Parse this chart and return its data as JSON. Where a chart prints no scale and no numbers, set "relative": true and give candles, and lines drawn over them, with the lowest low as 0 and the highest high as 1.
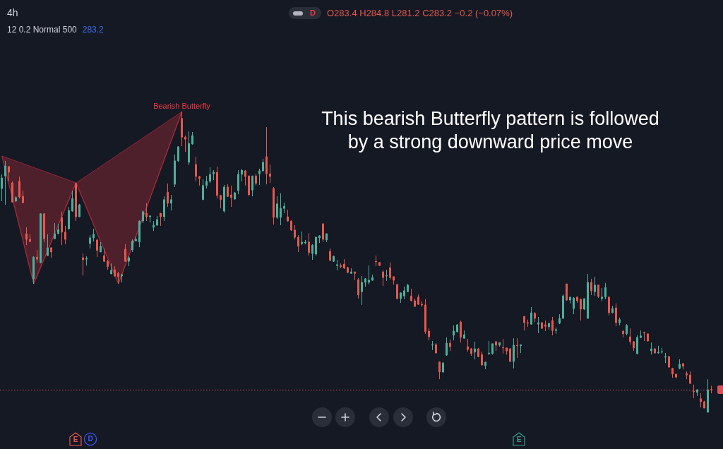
{
  "chart_data": {
    "type": "candlestick",
    "title": "4h",
    "subtitle": "12 0.2 Normal 500",
    "relative": true,
    "tick_labels": false,
    "categories": [
      null,
      null,
      null,
      null,
      null,
      null,
      null,
      null,
      null,
      null,
      null,
      null,
      null,
      null,
      null,
      null,
      null,
      null,
      null,
      null,
      null,
      null,
      null,
      null,
      null,
      null,
      null,
      null,
      null,
      null,
      null,
      null,
      null,
      null,
      null,
      null,
      null,
      null,
      null,
      null,
      null,
      null,
      null,
      null,
      null,
      null,
      null,
      null,
      null,
      null,
      null,
      null,
      null,
      null,
      null,
      null,
      null,
      null,
      null,
      null,
      null,
      null,
      null,
      null,
      null,
      null,
      null,
      null,
      null,
      null,
      null,
      null,
      null,
      null,
      null,
      null,
      null,
      null,
      null,
      null,
      null,
      null,
      null,
      null,
      null,
      null,
      null,
      null,
      null,
      null,
      null,
      null,
      null,
      null,
      null,
      null,
      null,
      null,
      null,
      null,
      null,
      null,
      null,
      null,
      null,
      null,
      null,
      null,
      null,
      null,
      null,
      null,
      null,
      null,
      null,
      null,
      null,
      null,
      null,
      null,
      null,
      null,
      null,
      null,
      null,
      null,
      null,
      null,
      null,
      null,
      null,
      null,
      null,
      null,
      null,
      null,
      null,
      null,
      null,
      null,
      null,
      null,
      null,
      null,
      null,
      null,
      null,
      null,
      null,
      null,
      null,
      null,
      null,
      null,
      null,
      null,
      null,
      null,
      null,
      null,
      null,
      null,
      null,
      null,
      null,
      null,
      null,
      null,
      null,
      null,
      null,
      null,
      null,
      null,
      null,
      null,
      null,
      null,
      null,
      null,
      null,
      null,
      null,
      null,
      null,
      null,
      null,
      null,
      null,
      null,
      null,
      null,
      null,
      null,
      null,
      null,
      null,
      null,
      null,
      null,
      null,
      null
    ],
    "ohlc": [
      [
        0.744,
        0.791,
        0.702,
        0.779
      ],
      [
        0.786,
        0.836,
        0.69,
        0.819
      ],
      [
        0.817,
        0.819,
        0.77,
        0.798
      ],
      [
        0.763,
        0.768,
        0.697,
        0.699
      ],
      [
        0.702,
        0.718,
        0.699,
        0.714
      ],
      [
        0.768,
        0.784,
        0.711,
        0.716
      ],
      [
        0.718,
        0.737,
        0.695,
        0.697
      ],
      [
        0.594,
        0.615,
        0.556,
        0.575
      ],
      [
        0.575,
        0.592,
        0.566,
        0.568
      ],
      [
        0.444,
        0.519,
        0.427,
        0.516
      ],
      [
        0.516,
        0.54,
        0.498,
        0.509
      ],
      [
        0.498,
        0.662,
        0.495,
        0.66
      ],
      [
        0.66,
        0.662,
        0.566,
        0.577
      ],
      [
        0.521,
        0.592,
        0.521,
        0.547
      ],
      [
        0.547,
        0.549,
        0.514,
        0.533
      ],
      [
        0.577,
        0.629,
        0.577,
        0.594
      ],
      [
        0.594,
        0.627,
        0.592,
        0.608
      ],
      [
        0.648,
        0.667,
        0.556,
        0.599
      ],
      [
        0.599,
        0.62,
        0.559,
        0.575
      ],
      [
        0.61,
        0.683,
        0.608,
        0.671
      ],
      [
        0.669,
        0.737,
        0.667,
        0.711
      ],
      [
        0.761,
        0.763,
        0.636,
        0.65
      ],
      [
        0.65,
        0.693,
        0.65,
        0.69
      ],
      [
        0.514,
        0.528,
        0.455,
        0.507
      ],
      [
        0.509,
        0.519,
        0.488,
        0.512
      ],
      [
        0.561,
        0.589,
        0.545,
        0.58
      ],
      [
        0.58,
        0.61,
        0.568,
        0.592
      ],
      [
        0.573,
        0.577,
        0.516,
        0.538
      ],
      [
        0.533,
        0.566,
        0.533,
        0.552
      ],
      [
        0.521,
        0.545,
        0.5,
        0.502
      ],
      [
        0.502,
        0.507,
        0.474,
        0.484
      ],
      [
        0.46,
        0.495,
        0.46,
        0.472
      ],
      [
        0.474,
        0.486,
        0.451,
        0.453
      ],
      [
        0.462,
        0.467,
        0.427,
        0.451
      ],
      [
        0.453,
        0.46,
        0.432,
        0.458
      ],
      [
        0.542,
        0.559,
        0.5,
        0.502
      ],
      [
        0.502,
        0.519,
        0.486,
        0.514
      ],
      [
        0.54,
        0.575,
        0.533,
        0.57
      ],
      [
        0.57,
        0.585,
        0.568,
        0.575
      ],
      [
        0.566,
        0.638,
        0.549,
        0.636
      ],
      [
        0.636,
        0.671,
        0.629,
        0.667
      ],
      [
        0.662,
        0.695,
        0.636,
        0.65
      ],
      [
        0.65,
        0.655,
        0.631,
        0.653
      ],
      [
        0.615,
        0.636,
        0.603,
        0.622
      ],
      [
        0.622,
        0.653,
        0.62,
        0.641
      ],
      [
        0.662,
        0.662,
        0.62,
        0.65
      ],
      [
        0.65,
        0.718,
        0.636,
        0.707
      ],
      [
        0.732,
        0.761,
        0.683,
        0.695
      ],
      [
        0.695,
        0.723,
        0.671,
        0.707
      ],
      [
        0.758,
        0.857,
        0.749,
        0.836
      ],
      [
        0.836,
        0.885,
        0.833,
        0.883
      ],
      [
        0.977,
        1,
        0.885,
        0.915
      ],
      [
        0.915,
        0.92,
        0.866,
        0.908
      ],
      [
        0.831,
        0.934,
        0.822,
        0.894
      ],
      [
        0.892,
        0.932,
        0.89,
        0.92
      ],
      [
        0.824,
        0.85,
        0.768,
        0.784
      ],
      [
        0.784,
        0.786,
        0.754,
        0.777
      ],
      [
        0.707,
        0.775,
        0.707,
        0.754
      ],
      [
        0.754,
        0.786,
        0.744,
        0.768
      ],
      [
        0.768,
        0.815,
        0.763,
        0.791
      ],
      [
        0.793,
        0.805,
        0.772,
        0.798
      ],
      [
        0.798,
        0.817,
        0.711,
        0.721
      ],
      [
        0.721,
        0.723,
        0.678,
        0.707
      ],
      [
        0.669,
        0.756,
        0.664,
        0.749
      ],
      [
        0.749,
        0.758,
        0.716,
        0.718
      ],
      [
        0.723,
        0.754,
        0.683,
        0.714
      ],
      [
        0.709,
        0.732,
        0.707,
        0.73
      ],
      [
        0.737,
        0.805,
        0.725,
        0.791
      ],
      [
        0.791,
        0.808,
        0.768,
        0.805
      ],
      [
        0.803,
        0.805,
        0.754,
        0.784
      ],
      [
        0.786,
        0.786,
        0.721,
        0.723
      ],
      [
        0.739,
        0.786,
        0.718,
        0.786
      ],
      [
        0.786,
        0.793,
        0.754,
        0.761
      ],
      [
        0.793,
        0.81,
        0.756,
        0.803
      ],
      [
        0.803,
        0.843,
        0.8,
        0.831
      ],
      [
        0.85,
        0.948,
        0.758,
        0.793
      ],
      [
        0.793,
        0.824,
        0.763,
        0.784
      ],
      [
        0.744,
        0.749,
        0.624,
        0.648
      ],
      [
        0.648,
        0.718,
        0.643,
        0.693
      ],
      [
        0.648,
        0.728,
        0.622,
        0.678
      ],
      [
        0.678,
        0.697,
        0.662,
        0.685
      ],
      [
        0.65,
        0.674,
        0.634,
        0.636
      ],
      [
        0.636,
        0.638,
        0.603,
        0.606
      ],
      [
        0.606,
        0.622,
        0.575,
        0.582
      ],
      [
        0.582,
        0.589,
        0.533,
        0.552
      ],
      [
        0.561,
        0.601,
        0.556,
        0.566
      ],
      [
        0.563,
        0.573,
        0.559,
        0.566
      ],
      [
        0.566,
        0.596,
        0.521,
        0.531
      ],
      [
        0.528,
        0.559,
        0.507,
        0.556
      ],
      [
        0.526,
        0.585,
        0.521,
        0.582
      ],
      [
        0.58,
        0.589,
        0.563,
        0.587
      ],
      [
        0.627,
        0.627,
        0.566,
        0.575
      ],
      [
        0.573,
        0.594,
        0.566,
        0.594
      ],
      [
        0.535,
        0.545,
        0.502,
        0.505
      ],
      [
        0.502,
        0.521,
        0.5,
        0.519
      ],
      [
        0.488,
        0.507,
        0.472,
        0.491
      ],
      [
        0.488,
        0.495,
        0.479,
        0.484
      ],
      [
        0.493,
        0.509,
        0.477,
        0.479
      ],
      [
        0.481,
        0.484,
        0.462,
        0.465
      ],
      [
        0.462,
        0.479,
        0.46,
        0.467
      ],
      [
        0.467,
        0.467,
        0.439,
        0.462
      ],
      [
        0.441,
        0.446,
        0.378,
        0.39
      ],
      [
        0.401,
        0.453,
        0.357,
        0.432
      ],
      [
        0.432,
        0.446,
        0.418,
        0.444
      ],
      [
        0.432,
        0.488,
        0.425,
        0.439
      ],
      [
        0.439,
        0.458,
        0.437,
        0.448
      ],
      [
        0.502,
        0.521,
        0.486,
        0.5
      ],
      [
        0.498,
        0.5,
        0.486,
        0.488
      ],
      [
        0.467,
        0.472,
        0.42,
        0.448
      ],
      [
        0.453,
        0.474,
        0.437,
        0.455
      ],
      [
        0.481,
        0.498,
        0.441,
        0.448
      ],
      [
        0.451,
        0.451,
        0.425,
        0.439
      ],
      [
        0.425,
        0.425,
        0.376,
        0.378
      ],
      [
        0.378,
        0.399,
        0.364,
        0.397
      ],
      [
        0.387,
        0.418,
        0.376,
        0.404
      ],
      [
        0.401,
        0.427,
        0.401,
        0.423
      ],
      [
        0.387,
        0.411,
        0.369,
        0.371
      ],
      [
        0.371,
        0.378,
        0.35,
        0.352
      ],
      [
        0.383,
        0.392,
        0.357,
        0.359
      ],
      [
        0.359,
        0.369,
        0.35,
        0.357
      ],
      [
        0.357,
        0.376,
        0.261,
        0.268
      ],
      [
        0.27,
        0.279,
        0.239,
        0.251
      ],
      [
        0.223,
        0.237,
        0.207,
        0.225
      ],
      [
        0.225,
        0.23,
        0.197,
        0.197
      ],
      [
        0.167,
        0.169,
        0.11,
        0.134
      ],
      [
        0.134,
        0.167,
        0.131,
        0.164
      ],
      [
        0.19,
        0.249,
        0.188,
        0.23
      ],
      [
        0.23,
        0.242,
        0.204,
        0.218
      ],
      [
        0.256,
        0.289,
        0.239,
        0.27
      ],
      [
        0.268,
        0.293,
        0.265,
        0.291
      ],
      [
        0.3,
        0.305,
        0.232,
        0.249
      ],
      [
        0.246,
        0.272,
        0.246,
        0.258
      ],
      [
        0.218,
        0.244,
        0.202,
        0.209
      ],
      [
        0.211,
        0.214,
        0.188,
        0.195
      ],
      [
        0.2,
        0.235,
        0.176,
        0.211
      ],
      [
        0.211,
        0.214,
        0.183,
        0.185
      ],
      [
        0.192,
        0.202,
        0.155,
        0.157
      ],
      [
        0.155,
        0.167,
        0.143,
        0.167
      ],
      [
        0.195,
        0.237,
        0.19,
        0.197
      ],
      [
        0.195,
        0.228,
        0.192,
        0.228
      ],
      [
        0.235,
        0.237,
        0.204,
        0.223
      ],
      [
        0.223,
        0.232,
        0.218,
        0.232
      ],
      [
        0.216,
        0.244,
        0.195,
        0.214
      ],
      [
        0.214,
        0.214,
        0.192,
        0.204
      ],
      [
        0.211,
        0.214,
        0.167,
        0.169
      ],
      [
        0.169,
        0.246,
        0.146,
        0.223
      ],
      [
        0.223,
        0.246,
        0.181,
        0.221
      ],
      [
        0.221,
        0.225,
        0.197,
        0.225
      ],
      [
        0.319,
        0.319,
        0.272,
        0.298
      ],
      [
        0.298,
        0.308,
        0.284,
        0.296
      ],
      [
        0.293,
        0.35,
        0.291,
        0.331
      ],
      [
        0.329,
        0.333,
        0.3,
        0.312
      ],
      [
        0.293,
        0.317,
        0.263,
        0.298
      ],
      [
        0.298,
        0.3,
        0.277,
        0.279
      ],
      [
        0.291,
        0.305,
        0.27,
        0.286
      ],
      [
        0.284,
        0.298,
        0.275,
        0.296
      ],
      [
        0.305,
        0.317,
        0.256,
        0.272
      ],
      [
        0.272,
        0.282,
        0.261,
        0.275
      ],
      [
        0.296,
        0.326,
        0.293,
        0.312
      ],
      [
        0.312,
        0.392,
        0.312,
        0.387
      ],
      [
        0.427,
        0.427,
        0.371,
        0.373
      ],
      [
        0.373,
        0.383,
        0.362,
        0.383
      ],
      [
        0.345,
        0.383,
        0.326,
        0.38
      ],
      [
        0.383,
        0.385,
        0.364,
        0.371
      ],
      [
        0.376,
        0.378,
        0.305,
        0.343
      ],
      [
        0.343,
        0.378,
        0.34,
        0.378
      ],
      [
        0.312,
        0.46,
        0.312,
        0.432
      ],
      [
        0.432,
        0.444,
        0.39,
        0.404
      ],
      [
        0.401,
        0.451,
        0.387,
        0.423
      ],
      [
        0.423,
        0.425,
        0.38,
        0.385
      ],
      [
        0.378,
        0.413,
        0.369,
        0.383
      ],
      [
        0.383,
        0.43,
        0.376,
        0.415
      ],
      [
        0.383,
        0.385,
        0.322,
        0.331
      ],
      [
        0.331,
        0.354,
        0.329,
        0.345
      ],
      [
        0.347,
        0.362,
        0.286,
        0.298
      ],
      [
        0.298,
        0.315,
        0.289,
        0.308
      ],
      [
        0.27,
        0.272,
        0.249,
        0.261
      ],
      [
        0.261,
        0.293,
        0.256,
        0.289
      ],
      [
        0.251,
        0.279,
        0.225,
        0.235
      ],
      [
        0.235,
        0.237,
        0.204,
        0.214
      ],
      [
        0.195,
        0.256,
        0.192,
        0.249
      ],
      [
        0.249,
        0.272,
        0.246,
        0.254
      ],
      [
        0.265,
        0.268,
        0.237,
        0.263
      ],
      [
        0.261,
        0.261,
        0.235,
        0.237
      ],
      [
        0.204,
        0.232,
        0.192,
        0.211
      ],
      [
        0.211,
        0.214,
        0.195,
        0.197
      ],
      [
        0.197,
        0.221,
        0.195,
        0.2
      ],
      [
        0.2,
        0.214,
        0.195,
        0.202
      ],
      [
        0.183,
        0.197,
        0.164,
        0.185
      ],
      [
        0.185,
        0.188,
        0.148,
        0.15
      ],
      [
        0.146,
        0.148,
        0.115,
        0.127
      ],
      [
        0.127,
        0.127,
        0.113,
        0.117
      ],
      [
        0.146,
        0.176,
        0.143,
        0.16
      ],
      [
        0.162,
        0.162,
        0.143,
        0.153
      ],
      [
        0.129,
        0.136,
        0.11,
        0.124
      ],
      [
        0.124,
        0.136,
        0.094,
        0.096
      ],
      [
        0.07,
        0.092,
        0.047,
        0.068
      ],
      [
        0.066,
        0.077,
        0.054,
        0.075
      ],
      [
        0.045,
        0.063,
        0.016,
        0.035
      ],
      [
        0.035,
        0.038,
        0.014,
        0.014
      ],
      [
        0,
        0.11,
        0,
        0.075
      ],
      [
        0.076,
        0.088,
        0.063,
        0.075
      ]
    ],
    "colors": [
      "#4caf9c",
      "#4caf9c",
      "#e4584f",
      "#e4584f",
      "#4caf9c",
      "#e4584f",
      "#e4584f",
      "#e4584f",
      "#e4584f",
      "#4caf9c",
      "#e4584f",
      "#4caf9c",
      "#e4584f",
      "#4caf9c",
      "#e4584f",
      "#4caf9c",
      "#4caf9c",
      "#e4584f",
      "#e4584f",
      "#4caf9c",
      "#4caf9c",
      "#e4584f",
      "#4caf9c",
      "#e4584f",
      "#4caf9c",
      "#4caf9c",
      "#4caf9c",
      "#e4584f",
      "#4caf9c",
      "#e4584f",
      "#e4584f",
      "#4caf9c",
      "#e4584f",
      "#e4584f",
      "#4caf9c",
      "#e4584f",
      "#4caf9c",
      "#4caf9c",
      "#4caf9c",
      "#4caf9c",
      "#4caf9c",
      "#e4584f",
      "#4caf9c",
      "#4caf9c",
      "#4caf9c",
      "#e4584f",
      "#4caf9c",
      "#e4584f",
      "#4caf9c",
      "#4caf9c",
      "#4caf9c",
      "#e4584f",
      "#e4584f",
      "#4caf9c",
      "#4caf9c",
      "#e4584f",
      "#e4584f",
      "#4caf9c",
      "#4caf9c",
      "#4caf9c",
      "#4caf9c",
      "#e4584f",
      "#e4584f",
      "#4caf9c",
      "#e4584f",
      "#e4584f",
      "#4caf9c",
      "#4caf9c",
      "#4caf9c",
      "#e4584f",
      "#e4584f",
      "#4caf9c",
      "#e4584f",
      "#4caf9c",
      "#4caf9c",
      "#e4584f",
      "#e4584f",
      "#e4584f",
      "#4caf9c",
      "#4caf9c",
      "#4caf9c",
      "#e4584f",
      "#e4584f",
      "#e4584f",
      "#e4584f",
      "#4caf9c",
      "#4caf9c",
      "#e4584f",
      "#4caf9c",
      "#4caf9c",
      "#4caf9c",
      "#e4584f",
      "#4caf9c",
      "#e4584f",
      "#4caf9c",
      "#4caf9c",
      "#e4584f",
      "#e4584f",
      "#e4584f",
      "#4caf9c",
      "#e4584f",
      "#e4584f",
      "#4caf9c",
      "#4caf9c",
      "#4caf9c",
      "#4caf9c",
      "#e4584f",
      "#e4584f",
      "#e4584f",
      "#4caf9c",
      "#e4584f",
      "#e4584f",
      "#e4584f",
      "#4caf9c",
      "#4caf9c",
      "#4caf9c",
      "#e4584f",
      "#e4584f",
      "#e4584f",
      "#e4584f",
      "#e4584f",
      "#e4584f",
      "#4caf9c",
      "#e4584f",
      "#e4584f",
      "#4caf9c",
      "#4caf9c",
      "#e4584f",
      "#4caf9c",
      "#4caf9c",
      "#e4584f",
      "#4caf9c",
      "#e4584f",
      "#e4584f",
      "#4caf9c",
      "#e4584f",
      "#e4584f",
      "#4caf9c",
      "#4caf9c",
      "#4caf9c",
      "#e4584f",
      "#4caf9c",
      "#e4584f",
      "#e4584f",
      "#e4584f",
      "#4caf9c",
      "#e4584f",
      "#4caf9c",
      "#e4584f",
      "#e4584f",
      "#4caf9c",
      "#e4584f",
      "#4caf9c",
      "#e4584f",
      "#e4584f",
      "#4caf9c",
      "#e4584f",
      "#4caf9c",
      "#4caf9c",
      "#4caf9c",
      "#e4584f",
      "#4caf9c",
      "#4caf9c",
      "#e4584f",
      "#e4584f",
      "#4caf9c",
      "#4caf9c",
      "#e4584f",
      "#4caf9c",
      "#e4584f",
      "#4caf9c",
      "#4caf9c",
      "#e4584f",
      "#4caf9c",
      "#e4584f",
      "#4caf9c",
      "#e4584f",
      "#4caf9c",
      "#e4584f",
      "#e4584f",
      "#4caf9c",
      "#4caf9c",
      "#e4584f",
      "#e4584f",
      "#4caf9c",
      "#e4584f",
      "#4caf9c",
      "#4caf9c",
      "#4caf9c",
      "#e4584f",
      "#e4584f",
      "#e4584f",
      "#4caf9c",
      "#e4584f",
      "#e4584f",
      "#e4584f",
      "#e4584f",
      "#4caf9c",
      "#e4584f",
      "#e4584f",
      "#4caf9c",
      "#e4584f"
    ],
    "series": [
      {
        "type": "line",
        "name": "Bearish Butterfly",
        "color": "#f23645",
        "values": [
          0.852,
          null,
          null,
          null,
          null,
          null,
          null,
          null,
          null,
          0.427,
          null,
          null,
          null,
          null,
          null,
          null,
          null,
          null,
          null,
          null,
          null,
          0.763,
          null,
          null,
          null,
          null,
          null,
          null,
          null,
          null,
          null,
          null,
          null,
          0.427,
          null,
          null,
          null,
          null,
          null,
          null,
          null,
          null,
          null,
          null,
          null,
          null,
          null,
          null,
          null,
          null,
          null,
          1,
          null,
          null,
          null,
          null,
          null,
          null,
          null,
          null,
          null,
          null,
          null,
          null,
          null,
          null,
          null,
          null,
          null,
          null,
          null,
          null,
          null,
          null,
          null,
          null,
          null,
          null,
          null,
          null,
          null,
          null,
          null,
          null,
          null,
          null,
          null,
          null,
          null,
          null,
          null,
          null,
          null,
          null,
          null,
          null,
          null,
          null,
          null,
          null,
          null,
          null,
          null,
          null,
          null,
          null,
          null,
          null,
          null,
          null,
          null,
          null,
          null,
          null,
          null,
          null,
          null,
          null,
          null,
          null,
          null,
          null,
          null,
          null,
          null,
          null,
          null,
          null,
          null,
          null,
          null,
          null,
          null,
          null,
          null,
          null,
          null,
          null,
          null,
          null,
          null,
          null,
          null,
          null,
          null,
          null,
          null,
          null,
          null,
          null,
          null,
          null,
          null,
          null,
          null,
          null,
          null,
          null,
          null,
          null,
          null,
          null,
          null,
          null,
          null,
          null,
          null,
          null,
          null,
          null,
          null,
          null,
          null,
          null,
          null,
          null,
          null,
          null,
          null,
          null,
          null,
          null,
          null,
          null,
          null,
          null,
          null,
          null,
          null,
          null,
          null,
          null,
          null,
          null,
          null,
          null,
          null,
          null,
          null,
          null,
          null,
          null
        ]
      }
    ],
    "ref_lines": [
      {
        "axis": "y",
        "value": 0.075,
        "color": "#d9505a",
        "line_style": "dotted"
      }
    ],
    "annotations": [
      "O283.4 H284.8 L281.2 C283.2 −0.2 (−0.07%)",
      "283.2",
      "This bearish Butterfly pattern is followed by a strong downward price move",
      "D",
      "E",
      "D",
      "E"
    ]
  }
}
